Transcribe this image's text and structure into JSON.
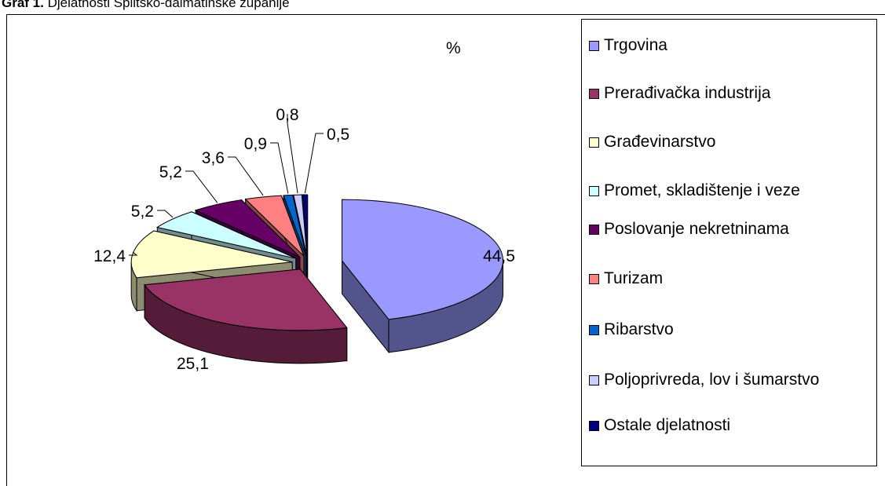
{
  "chart_data": {
    "type": "pie",
    "title_label": "Graf 1.",
    "title": "Djelatnosti Splitsko-dalmatinske županije",
    "unit_label": "%",
    "categories": [
      "Trgovina",
      "Prerađivačka industrija",
      "Građevinarstvo",
      "Promet, skladištenje i veze",
      "Poslovanje nekretninama",
      "Turizam",
      "Ribarstvo",
      "Poljoprivreda, lov i šumarstvo",
      "Ostale djelatnosti"
    ],
    "values": [
      44.5,
      25.1,
      12.4,
      5.2,
      5.2,
      3.6,
      0.9,
      0.8,
      0.5
    ],
    "value_labels": [
      "44,5",
      "25,1",
      "12,4",
      "5,2",
      "5,2",
      "3,6",
      "0,9",
      "0,8",
      "0,5"
    ],
    "colors": [
      "#9999ff",
      "#993366",
      "#ffffcc",
      "#ccffff",
      "#660066",
      "#ff8080",
      "#0066cc",
      "#ccccff",
      "#000080"
    ]
  }
}
